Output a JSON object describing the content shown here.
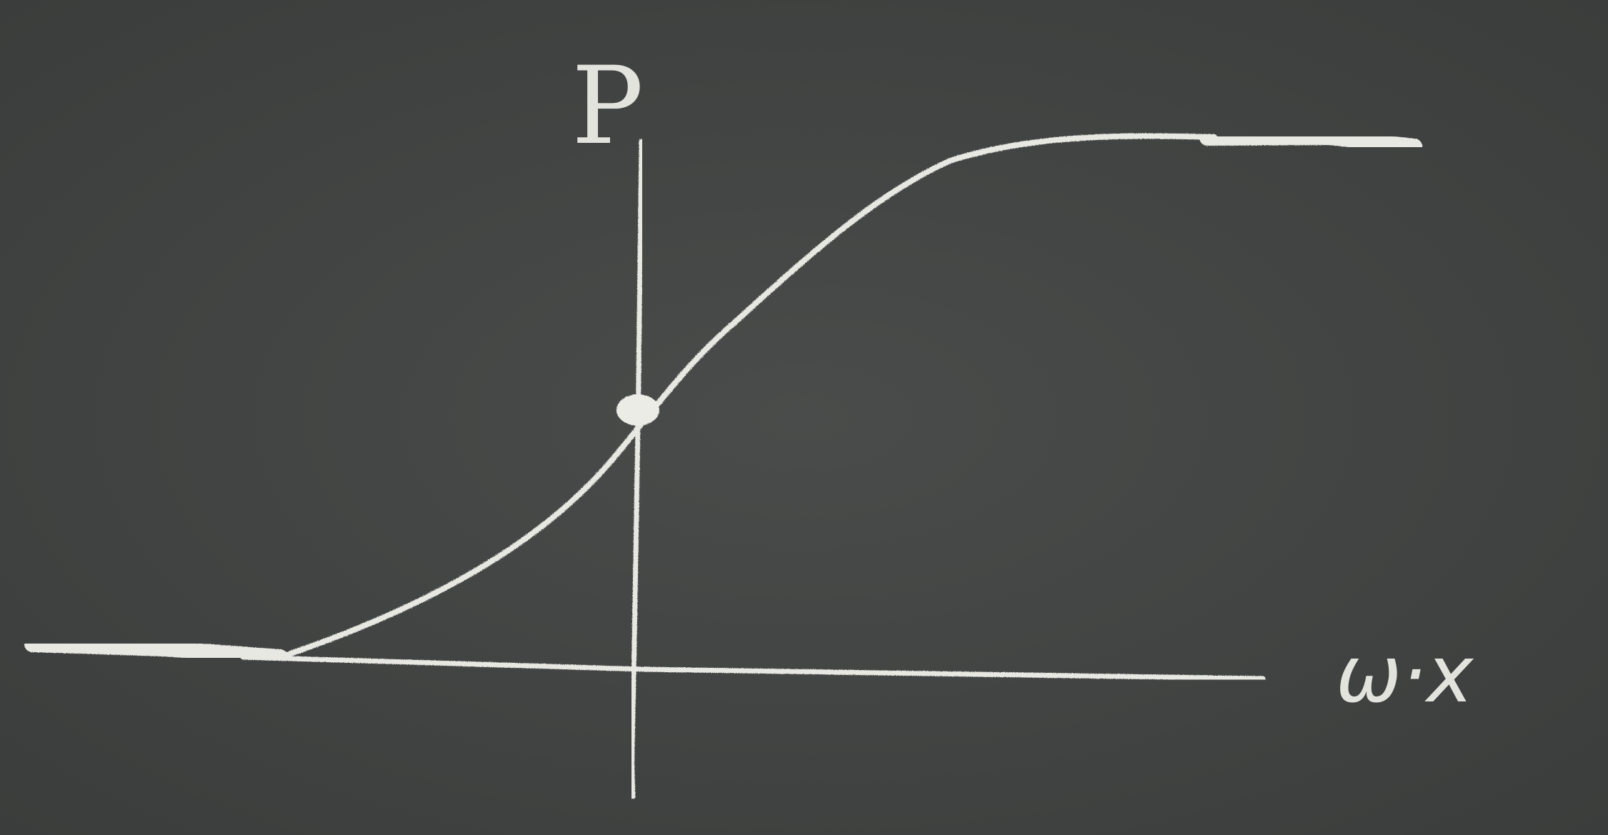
{
  "diagram": {
    "y_axis_label": "P",
    "x_axis_label": "ω·x",
    "colors": {
      "board": "#434544",
      "chalk": "#e8e8e3"
    },
    "curve": {
      "shape": "sigmoid",
      "left_asymptote": 0,
      "right_asymptote": 1,
      "marked_point_at_origin": 0.5
    }
  }
}
